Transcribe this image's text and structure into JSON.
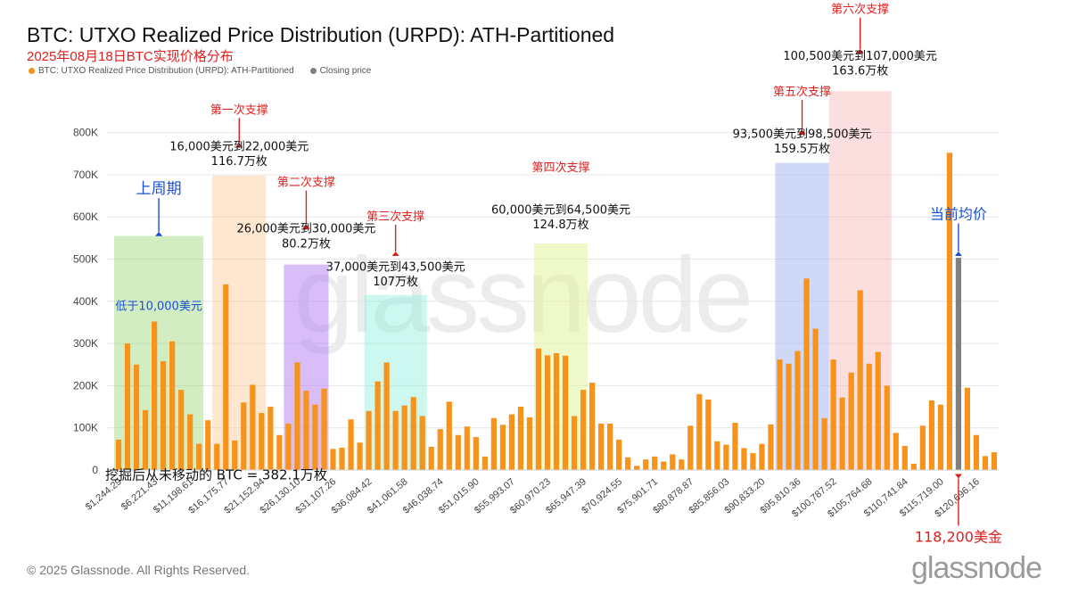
{
  "title": "BTC: UTXO Realized Price Distribution (URPD): ATH-Partitioned",
  "subtitle": "2025年08月18日BTC实现价格分布",
  "legend": [
    {
      "label": "BTC: UTXO Realized Price Distribution (URPD): ATH-Partitioned",
      "color": "#f7931a"
    },
    {
      "label": "Closing price",
      "color": "#808080"
    }
  ],
  "copyright": "© 2025 Glassnode. All Rights Reserved.",
  "logo": "glassnode",
  "watermark": "glassnode",
  "colors": {
    "bar": "#f7931a",
    "closing": "#808080",
    "red": "#e0201e",
    "blue": "#1a4fd6",
    "grid": "#e6e6e6",
    "axis_text": "#444444"
  },
  "chart_data": {
    "type": "bar",
    "ylim": [
      0,
      850000
    ],
    "y_ticks": [
      "0",
      "100K",
      "200K",
      "300K",
      "400K",
      "500K",
      "600K",
      "700K",
      "800K"
    ],
    "x_tick_labels": [
      "$1,244.29",
      "$6,221.43",
      "$11,198.61",
      "$16,175.77",
      "$21,152.94",
      "$26,130.10",
      "$31,107.26",
      "$36,084.42",
      "$41,061.58",
      "$46,038.74",
      "$51,015.90",
      "$55,993.07",
      "$60,970.23",
      "$65,947.39",
      "$70,924.55",
      "$75,901.71",
      "$80,878.87",
      "$85,856.03",
      "$90,833.20",
      "$95,810.36",
      "$100,787.52",
      "$105,764.68",
      "$110,741.84",
      "$115,719.00",
      "$120,696.16"
    ],
    "series": [
      {
        "name": "BTC: UTXO Realized Price Distribution (URPD): ATH-Partitioned",
        "values": [
          72000,
          300000,
          250000,
          142000,
          352000,
          258000,
          305000,
          190000,
          132000,
          62000,
          118000,
          62000,
          440000,
          70000,
          160000,
          202000,
          135000,
          150000,
          83000,
          110000,
          255000,
          188000,
          155000,
          193000,
          50000,
          53000,
          120000,
          65000,
          140000,
          210000,
          255000,
          140000,
          153000,
          173000,
          128000,
          55000,
          97000,
          162000,
          83000,
          103000,
          78000,
          32000,
          123000,
          107000,
          132000,
          150000,
          125000,
          288000,
          272000,
          277000,
          271000,
          128000,
          190000,
          207000,
          110000,
          110000,
          72000,
          30000,
          10000,
          25000,
          32000,
          20000,
          37000,
          25000,
          105000,
          180000,
          167000,
          68000,
          60000,
          112000,
          52000,
          40000,
          62000,
          108000,
          262000,
          252000,
          282000,
          454000,
          335000,
          123000,
          262000,
          172000,
          231000,
          426000,
          252000,
          280000,
          200000,
          88000,
          57000,
          15000,
          105000,
          165000,
          155000,
          752000,
          0,
          195000,
          83000,
          33000,
          42000
        ]
      },
      {
        "name": "Closing price",
        "values": [
          0,
          0,
          0,
          0,
          0,
          0,
          0,
          0,
          0,
          0,
          0,
          0,
          0,
          0,
          0,
          0,
          0,
          0,
          0,
          0,
          0,
          0,
          0,
          0,
          0,
          0,
          0,
          0,
          0,
          0,
          0,
          0,
          0,
          0,
          0,
          0,
          0,
          0,
          0,
          0,
          0,
          0,
          0,
          0,
          0,
          0,
          0,
          0,
          0,
          0,
          0,
          0,
          0,
          0,
          0,
          0,
          0,
          0,
          0,
          0,
          0,
          0,
          0,
          0,
          0,
          0,
          0,
          0,
          0,
          0,
          0,
          0,
          0,
          0,
          0,
          0,
          0,
          0,
          0,
          0,
          0,
          0,
          0,
          0,
          0,
          0,
          0,
          0,
          0,
          0,
          0,
          0,
          0,
          0,
          503000,
          0,
          0,
          0,
          0
        ]
      }
    ],
    "highlight_zones": [
      {
        "name": "上周期",
        "start_bar": 0,
        "end_bar": 9,
        "top": 555000,
        "color": "#9dd67a",
        "opacity": 0.45
      },
      {
        "name": "第一次支撑",
        "start_bar": 11,
        "end_bar": 16,
        "top": 698000,
        "color": "#f9c48c",
        "opacity": 0.4
      },
      {
        "name": "第二次支撑",
        "start_bar": 19,
        "end_bar": 23,
        "top": 487000,
        "color": "#b27cf2",
        "opacity": 0.5
      },
      {
        "name": "第三次支撑",
        "start_bar": 28,
        "end_bar": 34,
        "top": 415000,
        "color": "#8ff0dc",
        "opacity": 0.45
      },
      {
        "name": "第四次支撑",
        "start_bar": 47,
        "end_bar": 52,
        "top": 537000,
        "color": "#e2f29c",
        "opacity": 0.55
      },
      {
        "name": "第五次支撑",
        "start_bar": 74,
        "end_bar": 79,
        "top": 728000,
        "color": "#9fb2ef",
        "opacity": 0.5
      },
      {
        "name": "第六次支撑",
        "start_bar": 80,
        "end_bar": 86,
        "top": 898000,
        "color": "#f7b8b8",
        "opacity": 0.45
      }
    ],
    "annotations": [
      {
        "text": "上周期",
        "bar": 4.5,
        "y": 655000,
        "color": "#1a4fd6",
        "size": 17,
        "arrow_to": 565000
      },
      {
        "text": "低于10,000美元",
        "bar": 4.5,
        "y": 380000,
        "color": "#1a4fd6",
        "size": 13
      },
      {
        "text": "第一次支撑",
        "bar": 13.5,
        "y": 845000,
        "color": "#e0201e",
        "size": 13,
        "arrow_to": 775000
      },
      {
        "text": "16,000美元到22,000美元",
        "bar": 13.5,
        "y": 758000,
        "color": "#111111",
        "size": 13
      },
      {
        "text": "116.7万枚",
        "bar": 13.5,
        "y": 723000,
        "color": "#111111",
        "size": 13
      },
      {
        "text": "第二次支撑",
        "bar": 21.0,
        "y": 673000,
        "color": "#e0201e",
        "size": 13,
        "arrow_to": 582000
      },
      {
        "text": "26,000美元到30,000美元",
        "bar": 21.0,
        "y": 563000,
        "color": "#111111",
        "size": 13
      },
      {
        "text": "80.2万枚",
        "bar": 21.0,
        "y": 528000,
        "color": "#111111",
        "size": 13
      },
      {
        "text": "第三次支撑",
        "bar": 31.0,
        "y": 592000,
        "color": "#e0201e",
        "size": 13,
        "arrow_to": 518000
      },
      {
        "text": "37,000美元到43,500美元",
        "bar": 31.0,
        "y": 473000,
        "color": "#111111",
        "size": 13
      },
      {
        "text": "107万枚",
        "bar": 31.0,
        "y": 438000,
        "color": "#111111",
        "size": 13
      },
      {
        "text": "第四次支撑",
        "bar": 49.5,
        "y": 708000,
        "color": "#e0201e",
        "size": 13
      },
      {
        "text": "60,000美元到64,500美元",
        "bar": 49.5,
        "y": 608000,
        "color": "#111111",
        "size": 13
      },
      {
        "text": "124.8万枚",
        "bar": 49.5,
        "y": 573000,
        "color": "#111111",
        "size": 13
      },
      {
        "text": "第五次支撑",
        "bar": 76.5,
        "y": 888000,
        "color": "#e0201e",
        "size": 13,
        "arrow_to": 806000
      },
      {
        "text": "93,500美元到98,500美元",
        "bar": 76.5,
        "y": 788000,
        "color": "#111111",
        "size": 13
      },
      {
        "text": "159.5万枚",
        "bar": 76.5,
        "y": 753000,
        "color": "#111111",
        "size": 13
      },
      {
        "text": "第六次支撑",
        "bar": 83.0,
        "y": 1083000,
        "color": "#e0201e",
        "size": 13,
        "arrow_to": 998000
      },
      {
        "text": "100,500美元到107,000美元",
        "bar": 83.0,
        "y": 973000,
        "color": "#111111",
        "size": 13
      },
      {
        "text": "163.6万枚",
        "bar": 83.0,
        "y": 938000,
        "color": "#111111",
        "size": 13
      },
      {
        "text": "当前均价",
        "bar": 94.0,
        "y": 595000,
        "color": "#1a4fd6",
        "size": 16,
        "arrow_to": 518000
      },
      {
        "text": "挖掘后从未移动的 BTC = 382.1万枚",
        "bar": 11.0,
        "y": -22000,
        "color": "#111111",
        "size": 15
      },
      {
        "text": "118,200美金",
        "bar": 94.0,
        "y": -170000,
        "color": "#e0201e",
        "size": 16,
        "arrow_to": -20000,
        "arrow_up": true
      }
    ]
  }
}
